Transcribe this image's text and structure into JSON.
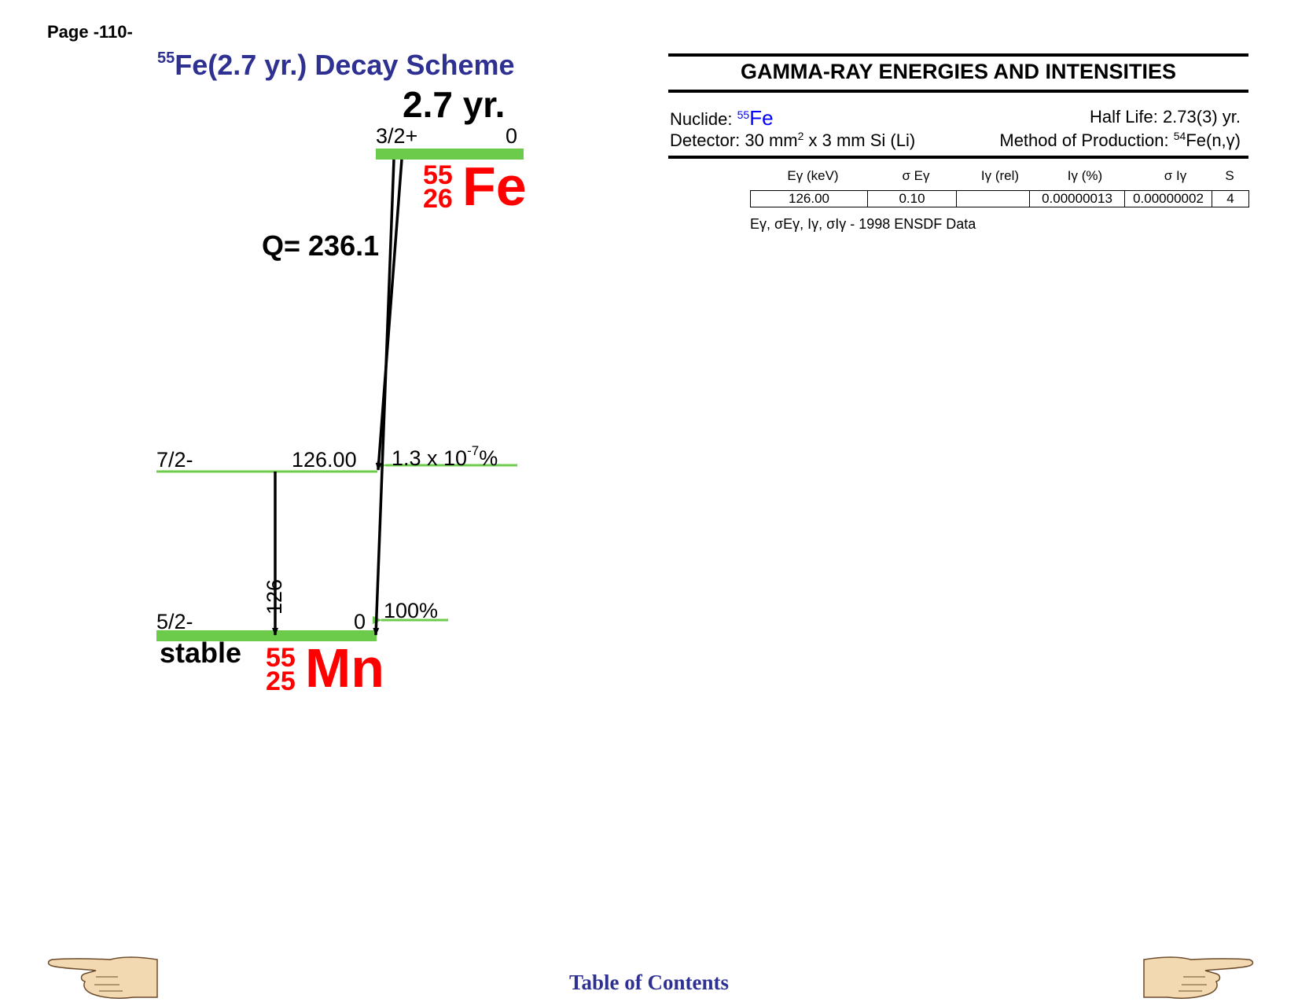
{
  "page": {
    "number": "Page -110-"
  },
  "scheme": {
    "title_mass": "55",
    "title_rest": "Fe(2.7 yr.) Decay Scheme",
    "half_life": "2.7 yr.",
    "parent": {
      "spin": "3/2+",
      "energy": "0",
      "mass": "55",
      "z": "26",
      "symbol": "Fe"
    },
    "q_value": "Q= 236.1",
    "levels": [
      {
        "spin": "7/2-",
        "energy": "126.00",
        "feed_base": "1.3 x 10",
        "feed_exp": "-7",
        "feed_unit": "%"
      },
      {
        "spin": "5/2-",
        "energy": "0",
        "feed": "100%"
      }
    ],
    "gamma_label": "126",
    "stable_label": "stable",
    "daughter": {
      "mass": "55",
      "z": "25",
      "symbol": "Mn"
    },
    "colors": {
      "level": "#6ccb4a",
      "nuclide": "#ff0000",
      "title": "#2e3192"
    }
  },
  "gamma_table": {
    "title": "GAMMA-RAY ENERGIES AND INTENSITIES",
    "nuclide_label": "Nuclide:",
    "nuclide_mass": "55",
    "nuclide_symbol": "Fe",
    "half_life": "Half Life: 2.73(3) yr.",
    "detector_a": "Detector: 30 mm",
    "detector_sup": "2",
    "detector_b": " x 3 mm Si (Li)",
    "production_a": "Method of Production: ",
    "production_sup": "54",
    "production_b": "Fe(n,γ)",
    "headers": [
      "Eγ (keV)",
      "σ Eγ",
      "Iγ (rel)",
      "Iγ (%)",
      "σ Iγ",
      "S"
    ],
    "rows": [
      [
        "126.00",
        "0.10",
        "",
        "0.00000013",
        "0.00000002",
        "4"
      ]
    ],
    "footnote": "Eγ, σEγ, Iγ, σIγ - 1998 ENSDF Data"
  },
  "footer": {
    "toc": "Table of Contents"
  },
  "nav": {
    "prev_icon": "pointing-hand-left-icon",
    "next_icon": "pointing-hand-right-icon"
  }
}
